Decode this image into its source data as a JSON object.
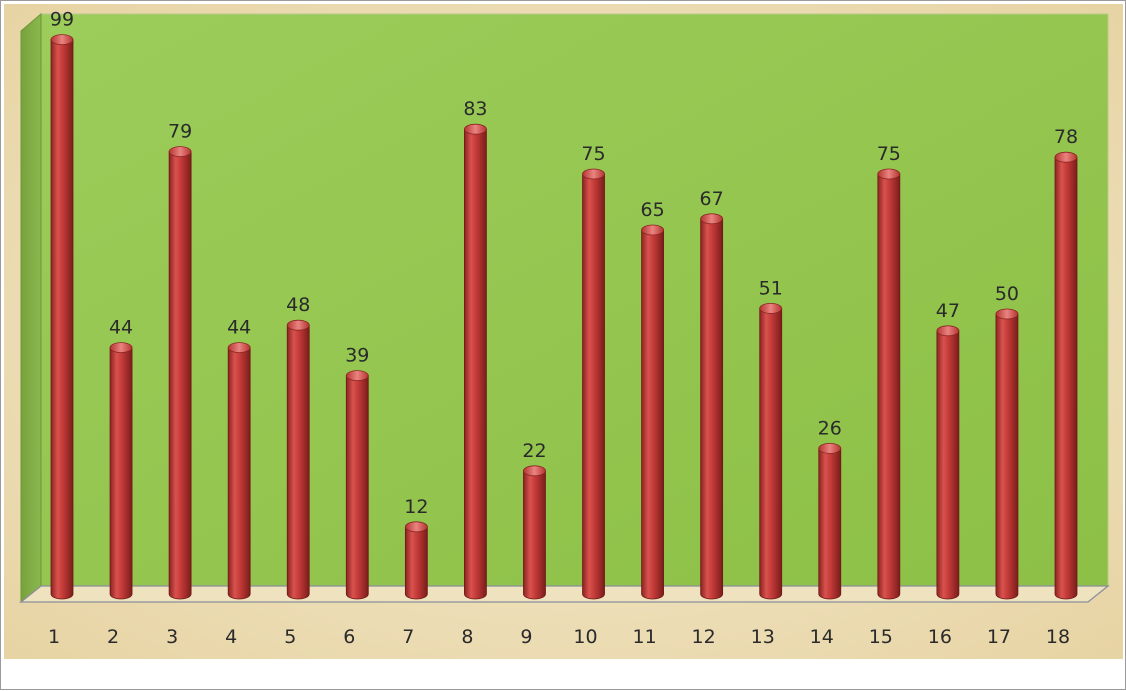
{
  "chart_data": {
    "type": "bar",
    "title": "",
    "xlabel": "",
    "ylabel": "",
    "categories": [
      "1",
      "2",
      "3",
      "4",
      "5",
      "6",
      "7",
      "8",
      "9",
      "10",
      "11",
      "12",
      "13",
      "14",
      "15",
      "16",
      "17",
      "18"
    ],
    "values": [
      99,
      44,
      79,
      44,
      48,
      39,
      12,
      83,
      22,
      75,
      65,
      67,
      51,
      26,
      75,
      47,
      50,
      78
    ],
    "ylim": [
      0,
      100
    ],
    "grid": false,
    "legend": "none",
    "bar_style": "3d-cylinder",
    "colors": {
      "bar": "#c23a38",
      "bar_dark": "#7e1f1d",
      "bar_light": "#e77b77",
      "plot_back_wall": "#96c851",
      "side_wall": "#86b048",
      "floor": "#efe2bf",
      "canvas": "#eedfb8",
      "text": "#2a2a2a"
    }
  }
}
